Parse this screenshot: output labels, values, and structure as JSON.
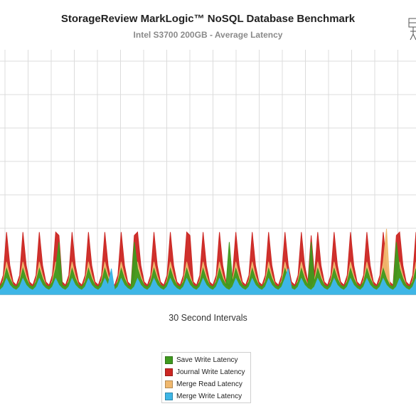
{
  "chart_data": {
    "type": "area",
    "title": "StorageReview MarkLogic™ NoSQL Database Benchmark",
    "subtitle": "Intel S3700 200GB - Average Latency",
    "xlabel": "30 Second Intervals",
    "ylabel": "",
    "ylim": [
      0,
      7.4
    ],
    "grid": true,
    "legend_position": "bottom-center",
    "pattern": {
      "interval_count": 128,
      "spike_period": 5,
      "spike_intervals_save_write": [
        18,
        41,
        70,
        95,
        121
      ],
      "spike_intervals_journal_write": [
        18,
        41,
        58,
        95,
        121
      ],
      "spike_intervals_merge_read": [
        118
      ],
      "spike_intervals_merge_write": [
        34,
        88
      ]
    },
    "series": [
      {
        "name": "Save Write Latency",
        "color": "#3f9a1e",
        "typical_values": [
          0.25,
          0.4,
          0.8,
          0.5,
          0.3
        ],
        "spike_value": 1.6
      },
      {
        "name": "Journal Write Latency",
        "color": "#cc2622",
        "typical_values": [
          0.3,
          0.6,
          1.9,
          0.9,
          0.4
        ],
        "spike_value": 1.8
      },
      {
        "name": "Merge Read Latency",
        "color": "#f0b86e",
        "typical_values": [
          0.2,
          0.45,
          1.0,
          0.6,
          0.3
        ],
        "spike_value": 2.0
      },
      {
        "name": "Merge Write Latency",
        "color": "#3eb6e6",
        "typical_values": [
          0.15,
          0.25,
          0.5,
          0.3,
          0.2
        ],
        "spike_value": 0.8
      }
    ]
  }
}
